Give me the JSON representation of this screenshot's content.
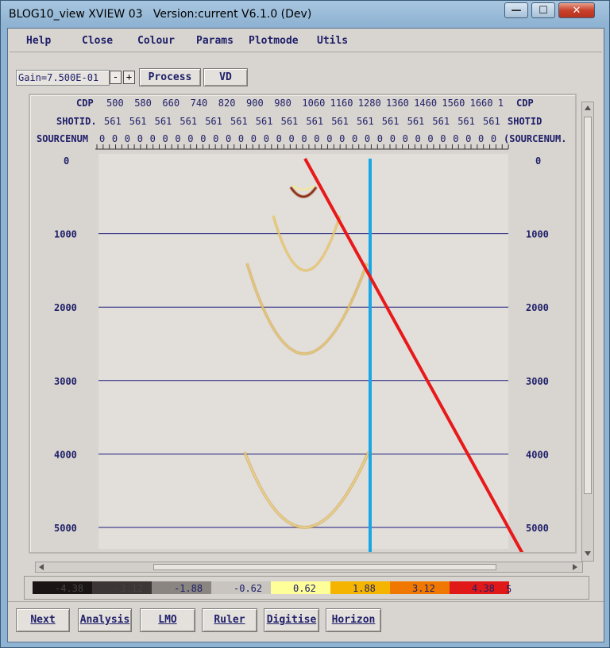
{
  "window": {
    "title": "BLOG10_view XVIEW 03   Version:current V6.1.0 (Dev)",
    "minimize_glyph": "—",
    "maximize_glyph": "☐",
    "close_glyph": "✕"
  },
  "menu": [
    "Help",
    "Close",
    "Colour",
    "Params",
    "Plotmode",
    "Utils"
  ],
  "toolbar": {
    "gain_text": "Gain=7.500E-01",
    "minus_label": "-",
    "plus_label": "+",
    "process_label": "Process",
    "vd_label": "VD"
  },
  "plot": {
    "cdp_label": "CDP",
    "cdp_values": [
      "500",
      "580",
      "660",
      "740",
      "820",
      "900",
      "980",
      "1060",
      "1160",
      "1280",
      "1360",
      "1460",
      "1560",
      "1660",
      "1"
    ],
    "shotid_label": "SHOTID.",
    "shotid_right_label": "SHOTID",
    "shotid_value": "561",
    "shotid_count": 16,
    "sourcenum_label": "SOURCENUM",
    "sourcenum_right_label": "(SOURCENUM.",
    "sourcenum_value": "0",
    "sourcenum_count": 32,
    "time_labels": [
      "0",
      "1000",
      "2000",
      "3000",
      "4000",
      "5000"
    ],
    "line_colors": {
      "red": "#e8191a",
      "blue": "#19a6e8",
      "grid": "#1a1a7a"
    }
  },
  "colour_scale": {
    "labels": [
      "-4.38",
      "-3.12",
      "-1.88",
      "-0.62",
      "0.62",
      "1.88",
      "3.12",
      "4.38"
    ],
    "end_label": "5",
    "colors": [
      "#1a1414",
      "#3c3636",
      "#8a8580",
      "#c8c4bf",
      "#ffff9a",
      "#f5b400",
      "#f07800",
      "#e01818"
    ]
  },
  "bottom_buttons": [
    "Next",
    "Analysis",
    "LMO",
    "Ruler",
    "Digitise",
    "Horizon"
  ]
}
